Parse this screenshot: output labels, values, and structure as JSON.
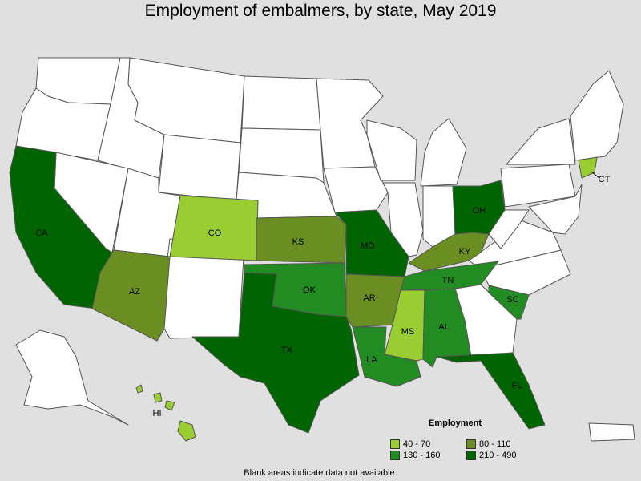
{
  "title": "Employment of embalmers, by state, May 2019",
  "footnote": "Blank areas indicate data not available.",
  "colors": {
    "blank": "#ffffff",
    "c40_70": "#9acd32",
    "c80_110": "#6b8e23",
    "c130_160": "#228b22",
    "c210_490": "#006400",
    "water": "#e0e0e0"
  },
  "legend": {
    "title": "Employment",
    "items": [
      {
        "label": "40 - 70",
        "color": "#9acd32"
      },
      {
        "label": "80 - 110",
        "color": "#6b8e23"
      },
      {
        "label": "130 - 160",
        "color": "#228b22"
      },
      {
        "label": "210 - 490",
        "color": "#006400"
      }
    ]
  },
  "states": {
    "CA": {
      "label": "CA",
      "range": "210 - 490"
    },
    "AZ": {
      "label": "AZ",
      "range": "80 - 110"
    },
    "CO": {
      "label": "CO",
      "range": "40 - 70"
    },
    "KS": {
      "label": "KS",
      "range": "80 - 110"
    },
    "OK": {
      "label": "OK",
      "range": "130 - 160"
    },
    "TX": {
      "label": "TX",
      "range": "210 - 490"
    },
    "MO": {
      "label": "MO",
      "range": "210 - 490"
    },
    "AR": {
      "label": "AR",
      "range": "80 - 110"
    },
    "LA": {
      "label": "LA",
      "range": "130 - 160"
    },
    "MS": {
      "label": "MS",
      "range": "40 - 70"
    },
    "AL": {
      "label": "AL",
      "range": "130 - 160"
    },
    "TN": {
      "label": "TN",
      "range": "130 - 160"
    },
    "KY": {
      "label": "KY",
      "range": "80 - 110"
    },
    "OH": {
      "label": "OH",
      "range": "210 - 490"
    },
    "SC": {
      "label": "SC",
      "range": "130 - 160"
    },
    "FL": {
      "label": "FL",
      "range": "210 - 490"
    },
    "CT": {
      "label": "CT",
      "range": "40 - 70"
    },
    "HI": {
      "label": "HI",
      "range": "40 - 70"
    }
  }
}
